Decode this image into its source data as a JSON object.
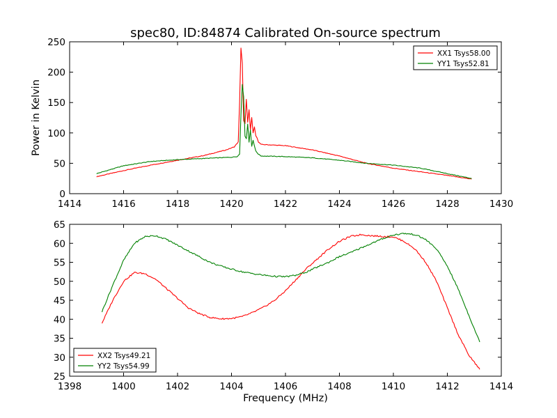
{
  "figure": {
    "title": "spec80, ID:84874 Calibrated On-source spectrum"
  },
  "colors": {
    "red": "#ff0000",
    "green": "#008000"
  },
  "chart_data": [
    {
      "type": "line",
      "title": "spec80, ID:84874 Calibrated On-source spectrum",
      "xlabel": "",
      "ylabel": "Power in Kelvin",
      "xlim": [
        1414,
        1430
      ],
      "ylim": [
        0,
        250
      ],
      "xticks": [
        "1414",
        "1416",
        "1418",
        "1420",
        "1422",
        "1424",
        "1426",
        "1428",
        "1430"
      ],
      "yticks": [
        "0",
        "50",
        "100",
        "150",
        "200",
        "250"
      ],
      "grid": false,
      "legend_position": "top-right",
      "series": [
        {
          "name": "XX1 Tsys58.00",
          "color": "#ff0000",
          "x": [
            1415.0,
            1416.0,
            1417.0,
            1418.0,
            1419.0,
            1419.8,
            1420.1,
            1420.25,
            1420.3,
            1420.35,
            1420.4,
            1420.45,
            1420.5,
            1420.55,
            1420.6,
            1420.65,
            1420.7,
            1420.75,
            1420.8,
            1420.85,
            1420.9,
            1420.95,
            1421.0,
            1421.1,
            1422.0,
            1423.0,
            1424.0,
            1425.0,
            1426.0,
            1427.0,
            1428.0,
            1428.9
          ],
          "y": [
            28,
            38,
            47,
            55,
            63,
            72,
            77,
            85,
            150,
            240,
            215,
            120,
            115,
            155,
            118,
            138,
            105,
            125,
            100,
            110,
            95,
            92,
            85,
            81,
            79,
            72,
            62,
            50,
            42,
            36,
            30,
            24
          ]
        },
        {
          "name": "YY1 Tsys52.81",
          "color": "#008000",
          "x": [
            1415.0,
            1416.0,
            1417.0,
            1418.0,
            1419.0,
            1420.0,
            1420.2,
            1420.3,
            1420.35,
            1420.4,
            1420.45,
            1420.5,
            1420.55,
            1420.6,
            1420.65,
            1420.7,
            1420.75,
            1420.8,
            1420.9,
            1421.0,
            1421.1,
            1422.0,
            1423.0,
            1424.0,
            1425.0,
            1426.0,
            1427.0,
            1428.0,
            1428.9
          ],
          "y": [
            33,
            46,
            53,
            56,
            58,
            60,
            61,
            65,
            130,
            180,
            160,
            95,
            90,
            115,
            85,
            105,
            78,
            88,
            70,
            65,
            62,
            61,
            59,
            55,
            50,
            47,
            42,
            33,
            25
          ]
        }
      ]
    },
    {
      "type": "line",
      "title": "",
      "xlabel": "Frequency (MHz)",
      "ylabel": "",
      "xlim": [
        1398,
        1414
      ],
      "ylim": [
        25,
        65
      ],
      "xticks": [
        "1398",
        "1400",
        "1402",
        "1404",
        "1406",
        "1408",
        "1410",
        "1412",
        "1414"
      ],
      "yticks": [
        "25",
        "30",
        "35",
        "40",
        "45",
        "50",
        "55",
        "60",
        "65"
      ],
      "grid": false,
      "legend_position": "bottom-left",
      "series": [
        {
          "name": "XX2 Tsys49.21",
          "color": "#ff0000",
          "x": [
            1399.2,
            1399.6,
            1400.0,
            1400.4,
            1400.8,
            1401.2,
            1401.6,
            1402.0,
            1402.4,
            1402.8,
            1403.2,
            1403.6,
            1404.0,
            1404.4,
            1404.8,
            1405.2,
            1405.6,
            1406.0,
            1406.4,
            1406.8,
            1407.2,
            1407.6,
            1408.0,
            1408.4,
            1408.8,
            1409.2,
            1409.6,
            1410.0,
            1410.4,
            1410.8,
            1411.2,
            1411.6,
            1412.0,
            1412.4,
            1412.8,
            1413.2
          ],
          "y": [
            39,
            45,
            50,
            52.3,
            52,
            50.5,
            48,
            45.5,
            43,
            41.5,
            40.5,
            40.1,
            40.2,
            40.7,
            41.8,
            43.2,
            45,
            47.5,
            50.5,
            53.5,
            56,
            58.5,
            60.5,
            61.8,
            62.3,
            62,
            61.8,
            61.7,
            60.5,
            58.5,
            55,
            50,
            43,
            36,
            30.5,
            26.8
          ]
        },
        {
          "name": "YY2 Tsys54.99",
          "color": "#008000",
          "x": [
            1399.2,
            1399.6,
            1400.0,
            1400.4,
            1400.8,
            1401.2,
            1401.6,
            1402.0,
            1402.4,
            1402.8,
            1403.2,
            1403.6,
            1404.0,
            1404.4,
            1404.8,
            1405.2,
            1405.6,
            1406.0,
            1406.4,
            1406.8,
            1407.2,
            1407.6,
            1408.0,
            1408.4,
            1408.8,
            1409.2,
            1409.6,
            1410.0,
            1410.4,
            1410.8,
            1411.2,
            1411.6,
            1412.0,
            1412.4,
            1412.8,
            1413.2
          ],
          "y": [
            42,
            49,
            55.5,
            60,
            61.8,
            62,
            61,
            59.5,
            58,
            56.5,
            55,
            54,
            53.2,
            52.5,
            52,
            51.6,
            51.3,
            51.2,
            51.6,
            52.5,
            53.8,
            55,
            56.5,
            57.5,
            58.8,
            60,
            61.2,
            62.2,
            62.6,
            62.3,
            61,
            58.5,
            54,
            48,
            41,
            34
          ]
        }
      ]
    }
  ]
}
